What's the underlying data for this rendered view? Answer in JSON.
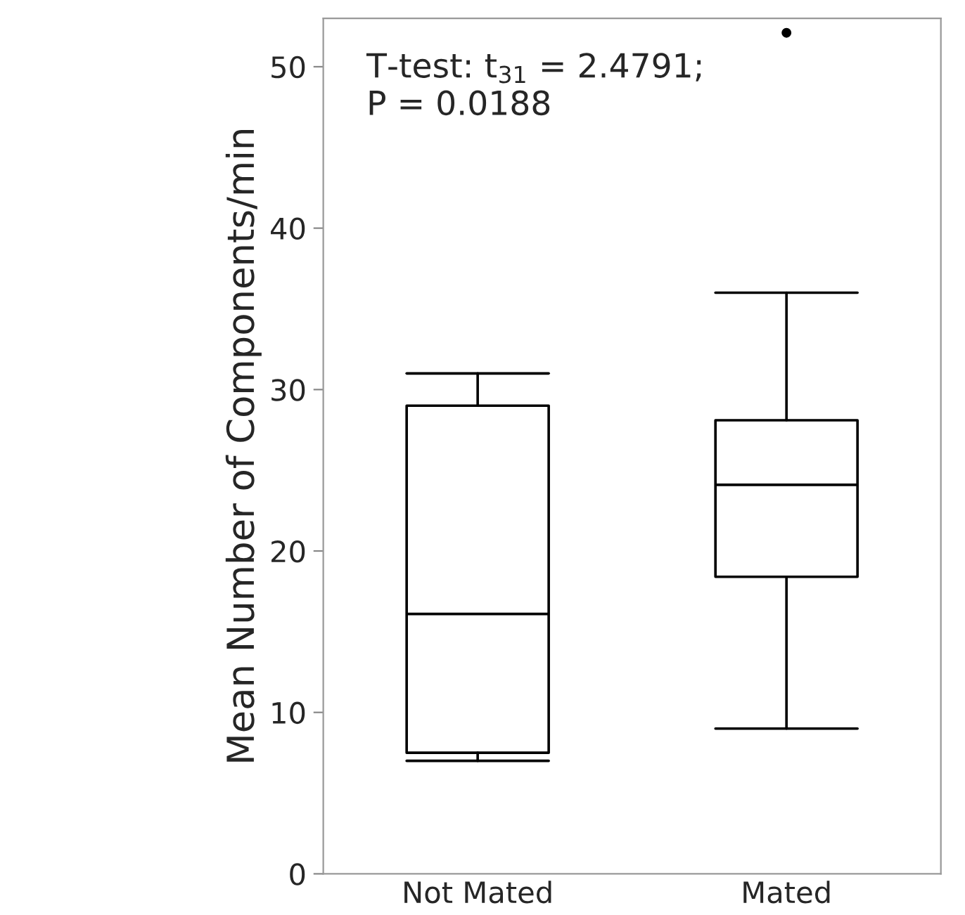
{
  "chart_data": {
    "type": "box",
    "ylabel": "Mean Number of Components/min",
    "categories": [
      "Not Mated",
      "Mated"
    ],
    "boxes": [
      {
        "low": 7.0,
        "q1": 7.5,
        "median": 16.1,
        "q3": 29.0,
        "high": 31.0
      },
      {
        "low": 9.0,
        "q1": 18.4,
        "median": 24.1,
        "q3": 28.1,
        "high": 36.0,
        "outliers": [
          52.1
        ]
      }
    ],
    "ylim": [
      0,
      53
    ],
    "yticks": [
      0,
      10,
      20,
      30,
      40,
      50
    ],
    "grid": false,
    "annotations": [
      "T-test: t$_{31}$ = 2.4791;\nP = 0.0188"
    ]
  }
}
